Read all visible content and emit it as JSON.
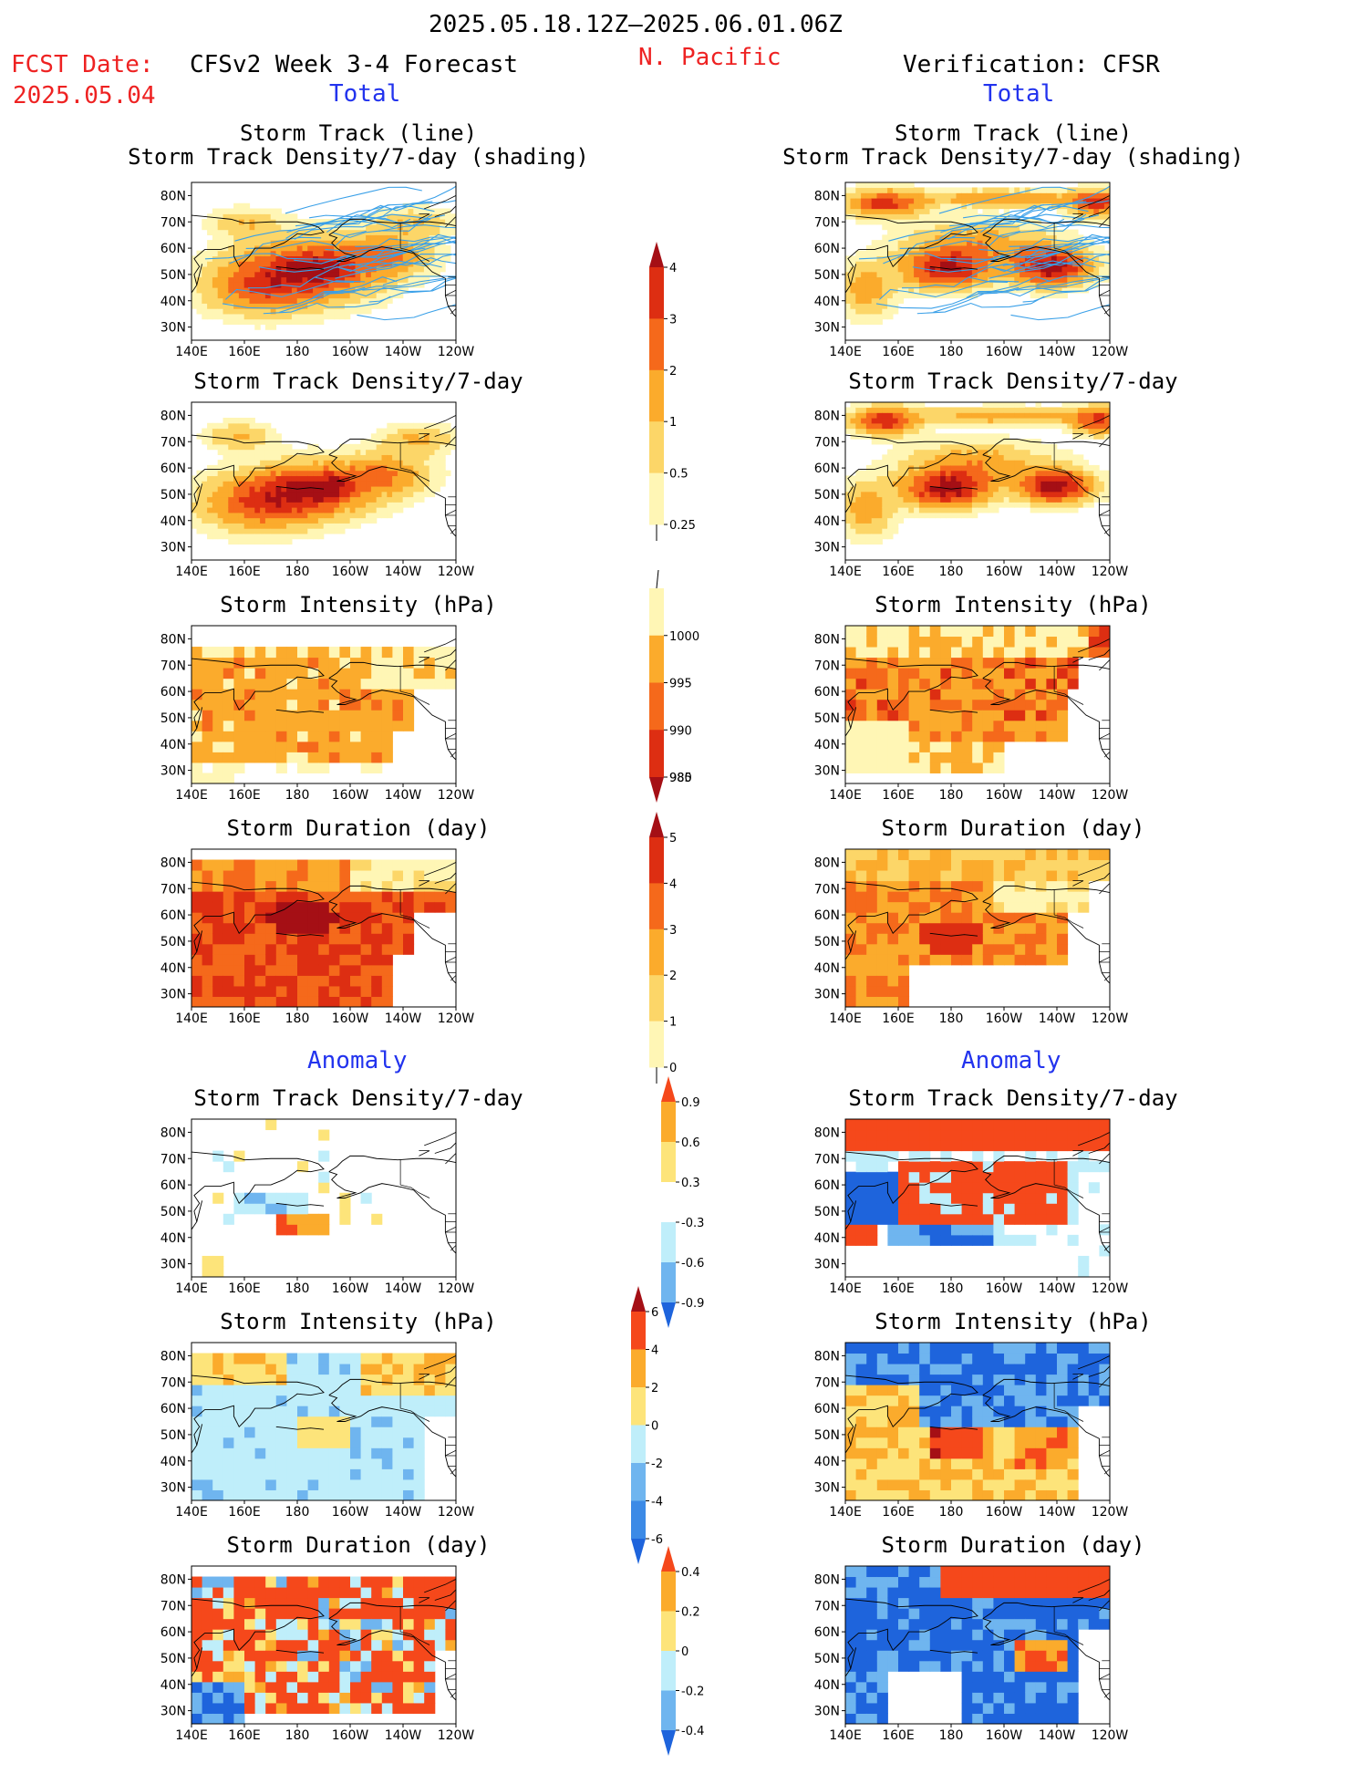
{
  "header": {
    "period": "2025.05.18.12Z–2025.06.01.06Z",
    "fcst_label": "FCST Date:",
    "fcst_date": "2025.05.04",
    "model": "CFSv2 Week 3-4 Forecast",
    "region": "N. Pacific",
    "verification": "Verification: CFSR",
    "total_left": "Total",
    "total_right": "Total",
    "anomaly_left": "Anomaly",
    "anomaly_right": "Anomaly"
  },
  "panel_titles": {
    "track_line": "Storm Track (line)",
    "track_shading": "Storm Track Density/7-day (shading)",
    "density": "Storm Track Density/7-day",
    "intensity": "Storm Intensity (hPa)",
    "duration": "Storm Duration (day)"
  },
  "axes": {
    "lat_labels": [
      "80N",
      "70N",
      "60N",
      "50N",
      "40N",
      "30N"
    ],
    "lon_labels": [
      "140E",
      "160E",
      "180",
      "160W",
      "140W",
      "120W"
    ]
  },
  "colorbars": {
    "density_total": {
      "labels": [
        "4",
        "3",
        "2",
        "1",
        "0.5",
        "0.25"
      ],
      "colors": [
        "#a50f15",
        "#dd2e12",
        "#f5691b",
        "#fbab2c",
        "#fcd668",
        "#fff6b5"
      ]
    },
    "intensity_total": {
      "labels": [
        "1000",
        "995",
        "990",
        "985",
        "980"
      ],
      "colors": [
        "#fff6b5",
        "#fbab2c",
        "#f5691b",
        "#dd2e12",
        "#a50f15"
      ]
    },
    "duration_total": {
      "labels": [
        "5",
        "4",
        "3",
        "2",
        "1",
        "0"
      ],
      "colors": [
        "#a50f15",
        "#dd2e12",
        "#f5691b",
        "#fbab2c",
        "#fcd668",
        "#fff6b5"
      ]
    },
    "density_anom": {
      "labels": [
        "0.9",
        "0.6",
        "0.3",
        "-0.3",
        "-0.6",
        "-0.9"
      ],
      "colors": [
        "#f5481b",
        "#fbab2c",
        "#fde47a",
        "#ffffff",
        "#bfeefa",
        "#6fb5ef",
        "#1e64dc"
      ]
    },
    "intensity_anom": {
      "labels": [
        "6",
        "4",
        "2",
        "0",
        "-2",
        "-4",
        "-6"
      ],
      "colors": [
        "#a50f15",
        "#f5481b",
        "#fbab2c",
        "#fde47a",
        "#bfeefa",
        "#6fb5ef",
        "#3c8ae6",
        "#1e64dc"
      ]
    },
    "duration_anom": {
      "labels": [
        "0.4",
        "0.2",
        "0",
        "-0.2",
        "-0.4"
      ],
      "colors": [
        "#f5481b",
        "#fbab2c",
        "#fde47a",
        "#bfeefa",
        "#6fb5ef",
        "#1e64dc"
      ]
    }
  },
  "palette": {
    "coast": "#000000",
    "track_line": "#3aa0e8"
  }
}
